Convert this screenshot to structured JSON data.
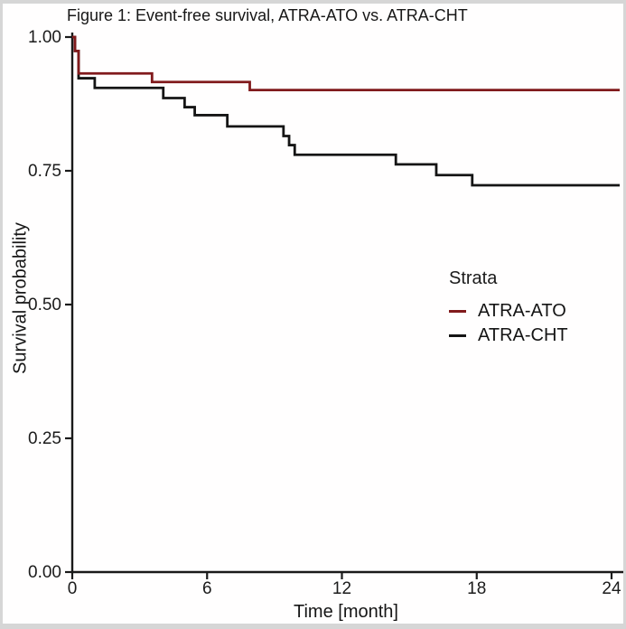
{
  "figure_title": "Figure 1: Event-free survival, ATRA-ATO vs. ATRA-CHT",
  "axes": {
    "x_label": "Time [month]",
    "y_label": "Survival probability",
    "x_ticks": [
      {
        "label": "0",
        "value": 0
      },
      {
        "label": "6",
        "value": 6
      },
      {
        "label": "12",
        "value": 12
      },
      {
        "label": "18",
        "value": 18
      },
      {
        "label": "24",
        "value": 24
      }
    ],
    "y_ticks": [
      {
        "label": "0.00",
        "value": 0
      },
      {
        "label": "0.25",
        "value": 0.25
      },
      {
        "label": "0.50",
        "value": 0.5
      },
      {
        "label": "0.75",
        "value": 0.75
      },
      {
        "label": "1.00",
        "value": 1.0
      }
    ]
  },
  "legend": {
    "title": "Strata",
    "items": [
      {
        "label": "ATRA-ATO",
        "color": "#811a1c"
      },
      {
        "label": "ATRA-CHT",
        "color": "#151515"
      }
    ]
  },
  "chart_data": {
    "type": "line",
    "subtype": "kaplan_meier_step",
    "title": "Figure 1: Event-free survival, ATRA-ATO vs. ATRA-CHT",
    "xlabel": "Time [month]",
    "ylabel": "Survival probability",
    "xlim": [
      0,
      24
    ],
    "ylim": [
      0,
      1
    ],
    "x_tick_values": [
      0,
      6,
      12,
      18,
      24
    ],
    "y_tick_values": [
      0,
      0.25,
      0.5,
      0.75,
      1.0
    ],
    "grid": false,
    "legend_position": "right-center",
    "axis_color": "#1a1a1a",
    "series": [
      {
        "name": "ATRA-ATO",
        "color": "#811a1c",
        "steps_time_prob": [
          [
            0,
            1.0
          ],
          [
            0.12,
            0.974
          ],
          [
            0.28,
            0.932
          ],
          [
            3.55,
            0.916
          ],
          [
            7.9,
            0.901
          ],
          [
            24,
            0.901
          ]
        ]
      },
      {
        "name": "ATRA-CHT",
        "color": "#151515",
        "steps_time_prob": [
          [
            0,
            1.0
          ],
          [
            0.12,
            0.974
          ],
          [
            0.28,
            0.923
          ],
          [
            1.0,
            0.905
          ],
          [
            4.05,
            0.886
          ],
          [
            5.0,
            0.869
          ],
          [
            5.45,
            0.854
          ],
          [
            6.9,
            0.833
          ],
          [
            9.4,
            0.815
          ],
          [
            9.65,
            0.798
          ],
          [
            9.9,
            0.78
          ],
          [
            14.4,
            0.762
          ],
          [
            16.2,
            0.742
          ],
          [
            17.8,
            0.723
          ],
          [
            24,
            0.723
          ]
        ]
      }
    ]
  }
}
